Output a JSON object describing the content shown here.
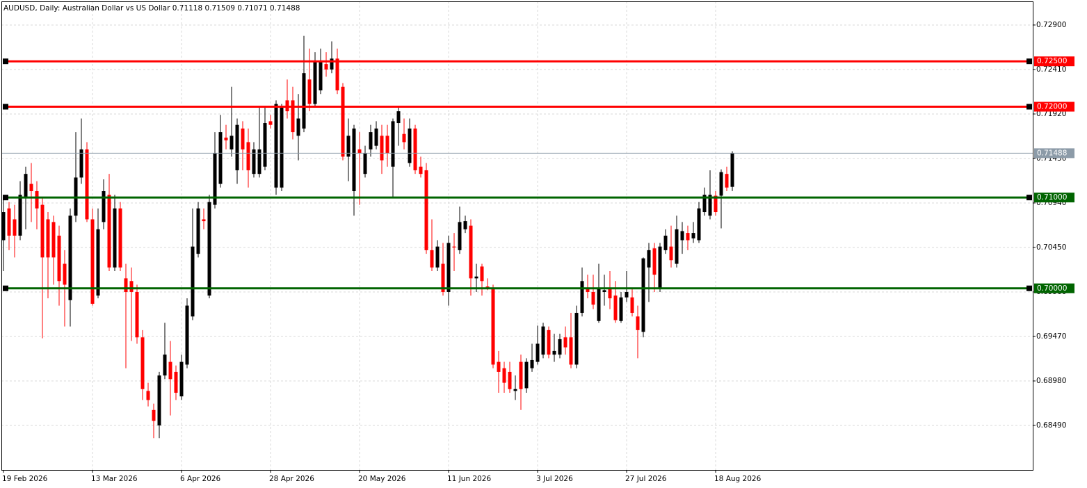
{
  "chart_data": {
    "type": "candlestick",
    "title": "AUDUSD, Daily:  Australian Dollar vs US Dollar  0.71118 0.71509 0.71071 0.71488",
    "categories": [
      "19 Feb 2026",
      null,
      null,
      null,
      null,
      null,
      null,
      null,
      null,
      null,
      null,
      null,
      null,
      null,
      null,
      null,
      "13 Mar 2026",
      null,
      null,
      null,
      null,
      null,
      null,
      null,
      null,
      null,
      null,
      null,
      null,
      null,
      null,
      null,
      "6 Apr 2026",
      null,
      null,
      null,
      null,
      null,
      null,
      null,
      null,
      null,
      null,
      null,
      null,
      null,
      null,
      null,
      "28 Apr 2026",
      null,
      null,
      null,
      null,
      null,
      null,
      null,
      null,
      null,
      null,
      null,
      null,
      null,
      null,
      null,
      "20 May 2026",
      null,
      null,
      null,
      null,
      null,
      null,
      null,
      null,
      null,
      null,
      null,
      null,
      null,
      null,
      null,
      "11 Jun 2026",
      null,
      null,
      null,
      null,
      null,
      null,
      null,
      null,
      null,
      null,
      null,
      null,
      null,
      null,
      null,
      "3 Jul 2026",
      null,
      null,
      null,
      null,
      null,
      null,
      null,
      null,
      null,
      null,
      null,
      null,
      null,
      null,
      null,
      "27 Jul 2026",
      null,
      null,
      null,
      null,
      null,
      null,
      null,
      null,
      null,
      null,
      null,
      null,
      null,
      null,
      null,
      "18 Aug 2026",
      null,
      null,
      null
    ],
    "open": [
      0.7053,
      0.7088,
      0.7076,
      0.7058,
      0.7099,
      0.7115,
      0.7107,
      0.7092,
      0.7076,
      0.7073,
      0.7058,
      0.7027,
      0.6987,
      0.708,
      0.7122,
      0.7153,
      0.7076,
      0.6992,
      0.7073,
      0.7103,
      0.7023,
      0.7088,
      0.7011,
      0.7008,
      0.6996,
      0.6946,
      0.6887,
      0.6866,
      0.6849,
      0.6904,
      0.6919,
      0.6908,
      0.6881,
      0.6916,
      0.6969,
      0.7038,
      0.7076,
      0.6992,
      0.7092,
      0.7115,
      0.7166,
      0.7153,
      0.713,
      0.7176,
      0.7161,
      0.7126,
      0.7126,
      0.7134,
      0.7184,
      0.7111,
      0.7111,
      0.7207,
      0.7207,
      0.7168,
      0.7176,
      0.723,
      0.7203,
      0.7218,
      0.7247,
      0.7241,
      0.7253,
      0.7222,
      0.7145,
      0.7107,
      0.7153,
      0.7126,
      0.7153,
      0.7157,
      0.7168,
      0.7168,
      0.7134,
      0.7182,
      0.717,
      0.7138,
      0.7176,
      0.7134,
      0.713,
      0.7042,
      0.7023,
      0.7027,
      0.6996,
      0.7046,
      0.7042,
      0.7065,
      0.7069,
      0.7011,
      0.7024,
      0.7002,
      0.6999,
      0.6919,
      0.6912,
      0.6908,
      0.6887,
      0.6919,
      0.689,
      0.6912,
      0.6919,
      0.6927,
      0.6954,
      0.6927,
      0.6927,
      0.6946,
      0.6946,
      0.6916,
      0.6973,
      0.7,
      0.6996,
      0.6964,
      0.6996,
      0.7,
      0.6992,
      0.6964,
      0.699,
      0.699,
      0.6969,
      0.6952,
      0.7023,
      0.7044,
      0.7,
      0.7042,
      0.7046,
      0.7027,
      0.7053,
      0.7061,
      0.7055,
      0.7053,
      0.7084,
      0.708,
      0.7102,
      0.7102,
      0.7126,
      0.71118
    ],
    "high": [
      0.7099,
      0.7095,
      0.7092,
      0.7118,
      0.7134,
      0.7138,
      0.7118,
      0.7099,
      0.7084,
      0.708,
      0.7069,
      0.7042,
      0.7088,
      0.7172,
      0.7187,
      0.7161,
      0.7088,
      0.7088,
      0.712,
      0.7126,
      0.7103,
      0.7095,
      0.7027,
      0.7023,
      0.7004,
      0.6954,
      0.6896,
      0.6873,
      0.6908,
      0.6962,
      0.6942,
      0.6915,
      0.6927,
      0.6989,
      0.7088,
      0.7095,
      0.7088,
      0.7103,
      0.7172,
      0.7191,
      0.718,
      0.7222,
      0.7187,
      0.7184,
      0.7176,
      0.7161,
      0.7199,
      0.7201,
      0.7191,
      0.7207,
      0.7203,
      0.723,
      0.7222,
      0.7214,
      0.7278,
      0.7264,
      0.726,
      0.7264,
      0.726,
      0.7272,
      0.7264,
      0.7226,
      0.7187,
      0.718,
      0.7172,
      0.7157,
      0.718,
      0.7184,
      0.718,
      0.718,
      0.7187,
      0.7201,
      0.7187,
      0.7187,
      0.718,
      0.7145,
      0.7138,
      0.7076,
      0.7053,
      0.705,
      0.7058,
      0.7061,
      0.709,
      0.708,
      0.7076,
      0.7027,
      0.7027,
      0.7011,
      0.7004,
      0.6931,
      0.6919,
      0.6919,
      0.6904,
      0.6927,
      0.6923,
      0.6939,
      0.6959,
      0.6962,
      0.6958,
      0.695,
      0.695,
      0.6958,
      0.6973,
      0.6981,
      0.7023,
      0.7015,
      0.7015,
      0.7027,
      0.7015,
      0.7019,
      0.7008,
      0.6996,
      0.7019,
      0.7,
      0.6981,
      0.7034,
      0.705,
      0.705,
      0.705,
      0.7065,
      0.7069,
      0.708,
      0.7073,
      0.7069,
      0.7073,
      0.7095,
      0.7111,
      0.713,
      0.7107,
      0.7131,
      0.7134,
      0.71509
    ],
    "low": [
      0.7019,
      0.7042,
      0.7034,
      0.7053,
      0.7065,
      0.7073,
      0.7065,
      0.6945,
      0.6989,
      0.7004,
      0.6981,
      0.6958,
      0.6958,
      0.7073,
      0.7115,
      0.7073,
      0.6981,
      0.6989,
      0.7065,
      0.7019,
      0.7019,
      0.7019,
      0.6912,
      0.6942,
      0.6939,
      0.6877,
      0.687,
      0.6835,
      0.6835,
      0.69,
      0.686,
      0.6877,
      0.6877,
      0.6912,
      0.6965,
      0.7034,
      0.7065,
      0.6989,
      0.7088,
      0.7111,
      0.7153,
      0.7145,
      0.7115,
      0.713,
      0.7111,
      0.7122,
      0.7122,
      0.713,
      0.7176,
      0.7103,
      0.7107,
      0.7187,
      0.7164,
      0.7141,
      0.7172,
      0.7195,
      0.7199,
      0.7214,
      0.7233,
      0.7237,
      0.7214,
      0.7141,
      0.7118,
      0.708,
      0.7092,
      0.7122,
      0.7145,
      0.7153,
      0.7126,
      0.7134,
      0.7099,
      0.7157,
      0.7153,
      0.7134,
      0.7126,
      0.7122,
      0.7038,
      0.7019,
      0.7019,
      0.6992,
      0.6981,
      0.7019,
      0.7038,
      0.7061,
      0.6992,
      0.6996,
      0.6992,
      0.6998,
      0.6912,
      0.6885,
      0.6885,
      0.6885,
      0.6877,
      0.6866,
      0.6885,
      0.6908,
      0.6916,
      0.6923,
      0.6923,
      0.6919,
      0.6923,
      0.6927,
      0.6912,
      0.6912,
      0.6969,
      0.6989,
      0.6977,
      0.6962,
      0.6981,
      0.6977,
      0.6962,
      0.6962,
      0.6985,
      0.6969,
      0.6923,
      0.6946,
      0.6985,
      0.6996,
      0.6996,
      0.7038,
      0.7023,
      0.7023,
      0.7038,
      0.7042,
      0.705,
      0.705,
      0.708,
      0.7076,
      0.708,
      0.7066,
      0.7107,
      0.71071
    ],
    "close": [
      0.7084,
      0.7058,
      0.7058,
      0.7103,
      0.7126,
      0.7107,
      0.7088,
      0.7034,
      0.7034,
      0.7034,
      0.7008,
      0.7004,
      0.708,
      0.7122,
      0.7153,
      0.7076,
      0.6983,
      0.7065,
      0.7107,
      0.7023,
      0.7088,
      0.7023,
      0.6996,
      0.6996,
      0.6946,
      0.6889,
      0.6877,
      0.6854,
      0.6904,
      0.6927,
      0.69,
      0.6885,
      0.6919,
      0.6981,
      0.7046,
      0.7088,
      0.7074,
      0.7095,
      0.7149,
      0.7172,
      0.7163,
      0.7168,
      0.718,
      0.7153,
      0.713,
      0.7153,
      0.7153,
      0.7182,
      0.718,
      0.7203,
      0.7199,
      0.7195,
      0.7172,
      0.7187,
      0.7237,
      0.7203,
      0.7249,
      0.7249,
      0.7241,
      0.7253,
      0.7218,
      0.7145,
      0.7168,
      0.7176,
      0.7149,
      0.7149,
      0.7172,
      0.7176,
      0.7141,
      0.7149,
      0.7184,
      0.7195,
      0.7161,
      0.7176,
      0.713,
      0.7126,
      0.7042,
      0.7023,
      0.7046,
      0.6996,
      0.705,
      0.7045,
      0.7073,
      0.7074,
      0.7011,
      0.7013,
      0.7008,
      0.7001,
      0.6916,
      0.6908,
      0.6896,
      0.6889,
      0.6889,
      0.6889,
      0.6919,
      0.6921,
      0.6939,
      0.6958,
      0.6927,
      0.6931,
      0.6944,
      0.6935,
      0.6916,
      0.6973,
      0.7008,
      0.6996,
      0.6982,
      0.7,
      0.6998,
      0.6989,
      0.6965,
      0.699,
      0.6996,
      0.6973,
      0.6954,
      0.7033,
      0.7042,
      0.7015,
      0.7046,
      0.7058,
      0.7031,
      0.7065,
      0.7063,
      0.7053,
      0.7061,
      0.7088,
      0.7103,
      0.7103,
      0.7084,
      0.7128,
      0.7111,
      0.71488
    ],
    "up_color": "#000000",
    "down_color": "#ff0000",
    "ylim": [
      0.68,
      0.7316
    ],
    "yticks": [
      {
        "value": 0.729,
        "label": "0.72900"
      },
      {
        "value": 0.7241,
        "label": "0.72410"
      },
      {
        "value": 0.7192,
        "label": "0.71920"
      },
      {
        "value": 0.7143,
        "label": "0.71430"
      },
      {
        "value": 0.7094,
        "label": "0.70940"
      },
      {
        "value": 0.7045,
        "label": "0.70450"
      },
      {
        "value": 0.6996,
        "label": "0.69960"
      },
      {
        "value": 0.6947,
        "label": "0.69470"
      },
      {
        "value": 0.6898,
        "label": "0.68980"
      },
      {
        "value": 0.6849,
        "label": "0.68490"
      }
    ],
    "grid": true,
    "levels": [
      {
        "value": 0.725,
        "label": "0.72500",
        "color": "#ff0000"
      },
      {
        "value": 0.72,
        "label": "0.72000",
        "color": "#ff0000"
      },
      {
        "value": 0.71,
        "label": "0.71000",
        "color": "#006400"
      },
      {
        "value": 0.7,
        "label": "0.70000",
        "color": "#006400"
      }
    ],
    "last_price": {
      "value": 0.71488,
      "label": "0.71488",
      "color": "#8c9ba8"
    }
  }
}
